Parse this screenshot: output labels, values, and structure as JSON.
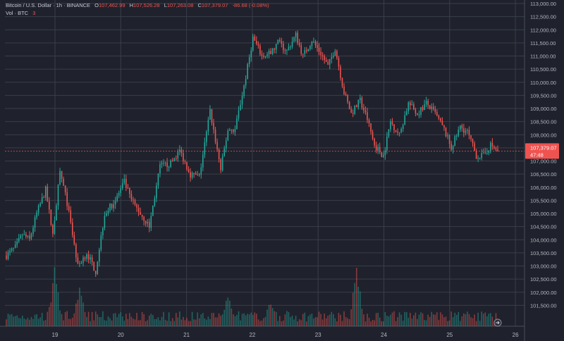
{
  "header": {
    "symbol": "Bitcoin / U.S. Dollar · 1h · BINANCE",
    "open_label": "O",
    "open": "107,462.99",
    "high_label": "H",
    "high": "107,526.28",
    "low_label": "L",
    "low": "107,263.08",
    "close_label": "C",
    "close": "107,379.07",
    "change": "-86.68 (-0.08%)"
  },
  "volume": {
    "label": "Vol · BTC",
    "value": "3"
  },
  "price_tag": {
    "price": "107,379.07",
    "countdown": "47:48"
  },
  "colors": {
    "up": "#26a69a",
    "down": "#ef5350",
    "background": "#1f222c",
    "grid": "#3a3e4a"
  },
  "chart_data": {
    "type": "candlestick",
    "x_tick_labels": [
      "19",
      "20",
      "21",
      "22",
      "23",
      "24",
      "25",
      "26"
    ],
    "y_tick_labels": [
      "101,500.00",
      "102,000.00",
      "102,500.00",
      "103,000.00",
      "103,500.00",
      "104,000.00",
      "104,500.00",
      "105,000.00",
      "105,500.00",
      "106,000.00",
      "106,500.00",
      "107,000.00",
      "107,500.00",
      "108,000.00",
      "108,500.00",
      "109,000.00",
      "109,500.00",
      "110,000.00",
      "110,500.00",
      "111,000.00",
      "111,500.00",
      "112,000.00",
      "112,500.00",
      "113,000.00"
    ],
    "ylim": [
      101000,
      113000
    ],
    "last_price": 107379.07,
    "keypoints": [
      {
        "t": 0,
        "p": 103400
      },
      {
        "t": 5,
        "p": 103700
      },
      {
        "t": 9,
        "p": 104200
      },
      {
        "t": 13,
        "p": 104000
      },
      {
        "t": 17,
        "p": 105000
      },
      {
        "t": 22,
        "p": 105900
      },
      {
        "t": 26,
        "p": 104200
      },
      {
        "t": 30,
        "p": 106600
      },
      {
        "t": 34,
        "p": 105400
      },
      {
        "t": 40,
        "p": 103000
      },
      {
        "t": 45,
        "p": 103500
      },
      {
        "t": 50,
        "p": 102800
      },
      {
        "t": 55,
        "p": 105000
      },
      {
        "t": 61,
        "p": 105500
      },
      {
        "t": 66,
        "p": 106200
      },
      {
        "t": 70,
        "p": 105500
      },
      {
        "t": 75,
        "p": 105000
      },
      {
        "t": 80,
        "p": 104500
      },
      {
        "t": 86,
        "p": 106800
      },
      {
        "t": 92,
        "p": 106900
      },
      {
        "t": 97,
        "p": 107400
      },
      {
        "t": 103,
        "p": 106500
      },
      {
        "t": 108,
        "p": 106400
      },
      {
        "t": 114,
        "p": 108900
      },
      {
        "t": 120,
        "p": 106700
      },
      {
        "t": 124,
        "p": 108200
      },
      {
        "t": 128,
        "p": 108200
      },
      {
        "t": 134,
        "p": 110200
      },
      {
        "t": 138,
        "p": 111700
      },
      {
        "t": 143,
        "p": 111000
      },
      {
        "t": 148,
        "p": 111100
      },
      {
        "t": 152,
        "p": 111500
      },
      {
        "t": 157,
        "p": 111200
      },
      {
        "t": 162,
        "p": 111800
      },
      {
        "t": 166,
        "p": 111000
      },
      {
        "t": 171,
        "p": 111600
      },
      {
        "t": 176,
        "p": 111100
      },
      {
        "t": 180,
        "p": 110600
      },
      {
        "t": 184,
        "p": 111300
      },
      {
        "t": 189,
        "p": 109600
      },
      {
        "t": 193,
        "p": 108800
      },
      {
        "t": 198,
        "p": 109300
      },
      {
        "t": 202,
        "p": 108600
      },
      {
        "t": 206,
        "p": 107600
      },
      {
        "t": 211,
        "p": 107200
      },
      {
        "t": 215,
        "p": 108500
      },
      {
        "t": 220,
        "p": 108000
      },
      {
        "t": 225,
        "p": 109200
      },
      {
        "t": 230,
        "p": 108800
      },
      {
        "t": 235,
        "p": 109200
      },
      {
        "t": 240,
        "p": 108800
      },
      {
        "t": 245,
        "p": 108200
      },
      {
        "t": 249,
        "p": 107500
      },
      {
        "t": 254,
        "p": 108300
      },
      {
        "t": 258,
        "p": 108100
      },
      {
        "t": 263,
        "p": 107200
      },
      {
        "t": 267,
        "p": 107200
      },
      {
        "t": 271,
        "p": 107600
      },
      {
        "t": 275,
        "p": 107379
      }
    ],
    "hours_total": 176,
    "volume_spikes": [
      {
        "t": 27,
        "v": 3.2
      },
      {
        "t": 41,
        "v": 2.4
      },
      {
        "t": 124,
        "v": 2.1
      },
      {
        "t": 148,
        "v": 1.6
      },
      {
        "t": 196,
        "v": 3.6
      }
    ]
  }
}
